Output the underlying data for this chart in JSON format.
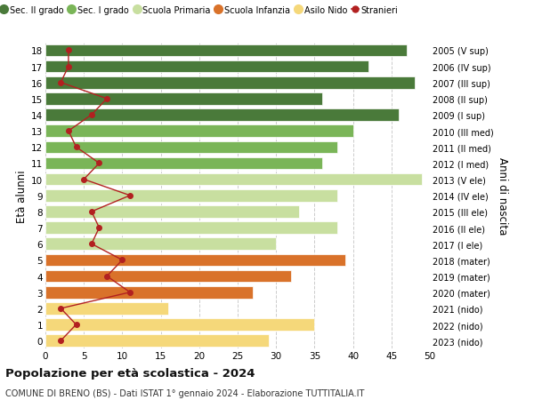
{
  "ages": [
    18,
    17,
    16,
    15,
    14,
    13,
    12,
    11,
    10,
    9,
    8,
    7,
    6,
    5,
    4,
    3,
    2,
    1,
    0
  ],
  "right_labels": [
    "2005 (V sup)",
    "2006 (IV sup)",
    "2007 (III sup)",
    "2008 (II sup)",
    "2009 (I sup)",
    "2010 (III med)",
    "2011 (II med)",
    "2012 (I med)",
    "2013 (V ele)",
    "2014 (IV ele)",
    "2015 (III ele)",
    "2016 (II ele)",
    "2017 (I ele)",
    "2018 (mater)",
    "2019 (mater)",
    "2020 (mater)",
    "2021 (nido)",
    "2022 (nido)",
    "2023 (nido)"
  ],
  "bar_values": [
    47,
    42,
    48,
    36,
    46,
    40,
    38,
    36,
    49,
    38,
    33,
    38,
    30,
    39,
    32,
    27,
    16,
    35,
    29
  ],
  "bar_colors": [
    "#4a7a3a",
    "#4a7a3a",
    "#4a7a3a",
    "#4a7a3a",
    "#4a7a3a",
    "#7ab558",
    "#7ab558",
    "#7ab558",
    "#c8dfa0",
    "#c8dfa0",
    "#c8dfa0",
    "#c8dfa0",
    "#c8dfa0",
    "#d9722a",
    "#d9722a",
    "#d9722a",
    "#f5d87a",
    "#f5d87a",
    "#f5d87a"
  ],
  "stranieri_values": [
    3,
    3,
    2,
    8,
    6,
    3,
    4,
    7,
    5,
    11,
    6,
    7,
    6,
    10,
    8,
    11,
    2,
    4,
    2
  ],
  "xlim": [
    0,
    50
  ],
  "ylim": [
    -0.5,
    18.5
  ],
  "xticks": [
    0,
    5,
    10,
    15,
    20,
    25,
    30,
    35,
    40,
    45,
    50
  ],
  "ylabel_left": "Età alunni",
  "ylabel_right": "Anni di nascita",
  "title_main": "Popolazione per età scolastica - 2024",
  "title_sub": "COMUNE DI BRENO (BS) - Dati ISTAT 1° gennaio 2024 - Elaborazione TUTTITALIA.IT",
  "legend_labels": [
    "Sec. II grado",
    "Sec. I grado",
    "Scuola Primaria",
    "Scuola Infanzia",
    "Asilo Nido",
    "Stranieri"
  ],
  "legend_colors": [
    "#4a7a3a",
    "#7ab558",
    "#c8dfa0",
    "#d9722a",
    "#f5d87a",
    "#b22020"
  ],
  "bar_height": 0.75,
  "grid_color": "#cccccc",
  "stranieri_color": "#b22020",
  "bg_color": "#ffffff"
}
